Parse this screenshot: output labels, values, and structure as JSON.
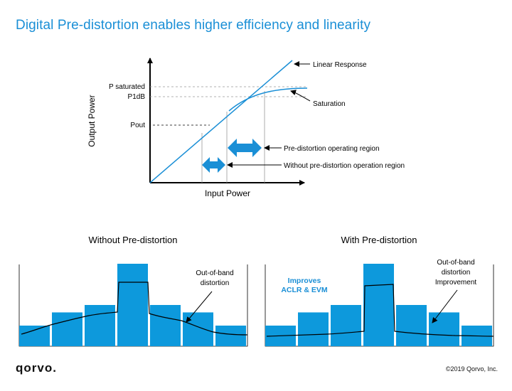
{
  "title": "Digital Pre-distortion enables higher efficiency and linearity",
  "colors": {
    "accent": "#1a8fd6",
    "bar": "#0d99dc",
    "line": "#000000"
  },
  "top_chart": {
    "y_axis_label": "Output Power",
    "x_axis_label": "Input Power",
    "y_ticks": [
      "P saturated",
      "P1dB",
      "Pout"
    ],
    "callouts": {
      "linear": "Linear Response",
      "saturation": "Saturation",
      "predistortion_region": "Pre-distortion operating region",
      "without_region": "Without pre-distortion operation region"
    }
  },
  "panels": {
    "left": {
      "heading": "Without Pre-distortion",
      "annotation_line1": "Out-of-band",
      "annotation_line2": "distortion",
      "bar_levels": [
        0.25,
        0.41,
        0.5,
        1.0,
        0.5,
        0.41,
        0.25
      ]
    },
    "right": {
      "heading": "With Pre-distortion",
      "callout_line1": "Improves",
      "callout_line2": "ACLR & EVM",
      "annotation_line1": "Out-of-band",
      "annotation_line2": "distortion",
      "annotation_line3": "Improvement",
      "bar_levels": [
        0.25,
        0.41,
        0.5,
        1.0,
        0.5,
        0.41,
        0.25
      ]
    }
  },
  "footer": {
    "logo": "qorvo.",
    "copyright": "©2019 Qorvo, Inc."
  }
}
